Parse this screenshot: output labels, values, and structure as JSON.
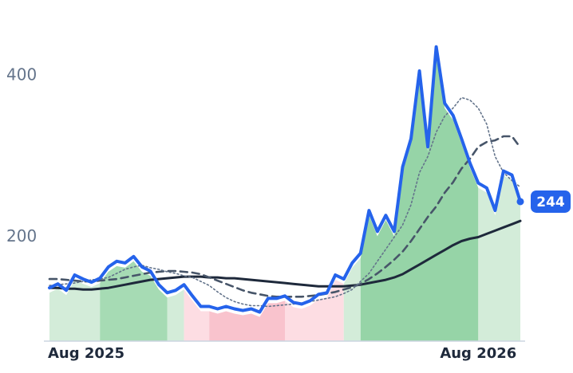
{
  "chart_data": {
    "type": "line",
    "categories": [
      "Aug 2025",
      null,
      null,
      null,
      null,
      null,
      null,
      null,
      null,
      null,
      null,
      null,
      null,
      null,
      null,
      null,
      null,
      null,
      null,
      null,
      null,
      null,
      null,
      null,
      null,
      null,
      null,
      null,
      null,
      null,
      null,
      null,
      null,
      null,
      null,
      null,
      null,
      null,
      null,
      null,
      null,
      null,
      null,
      null,
      null,
      null,
      null,
      null,
      null,
      null,
      null,
      "Aug 2026",
      null,
      null,
      null,
      null,
      null
    ],
    "series": [
      {
        "color": "#2563eb",
        "style": "solid",
        "width": 4,
        "values": [
          137,
          142,
          134,
          153,
          148,
          144,
          149,
          163,
          170,
          168,
          176,
          163,
          158,
          141,
          131,
          134,
          141,
          127,
          114,
          114,
          111,
          114,
          111,
          109,
          111,
          107,
          124,
          124,
          127,
          119,
          117,
          121,
          129,
          131,
          153,
          148,
          168,
          180,
          233,
          207,
          227,
          207,
          287,
          322,
          406,
          312,
          436,
          366,
          351,
          322,
          292,
          267,
          261,
          233,
          282,
          277,
          244
        ]
      },
      {
        "color": "#64748b",
        "style": "dotted",
        "width": 1.6,
        "values": [
          140,
          141,
          142,
          143,
          145,
          147,
          148,
          150,
          155,
          160,
          163,
          165,
          162,
          160,
          157,
          155,
          152,
          150,
          145,
          140,
          132,
          125,
          120,
          117,
          115,
          115,
          114,
          115,
          116,
          117,
          118,
          120,
          122,
          124,
          126,
          130,
          135,
          145,
          155,
          170,
          185,
          200,
          215,
          240,
          280,
          300,
          330,
          350,
          360,
          373,
          370,
          360,
          340,
          300,
          280,
          270,
          262
        ]
      },
      {
        "color": "#475569",
        "style": "dashed",
        "width": 2.6,
        "values": [
          148,
          148,
          147,
          146,
          145,
          145,
          146,
          147,
          148,
          150,
          152,
          154,
          156,
          157,
          158,
          158,
          157,
          156,
          154,
          150,
          146,
          142,
          138,
          134,
          131,
          129,
          127,
          126,
          126,
          126,
          126,
          127,
          128,
          130,
          132,
          135,
          138,
          142,
          148,
          155,
          163,
          172,
          182,
          195,
          210,
          225,
          238,
          255,
          268,
          285,
          297,
          312,
          318,
          320,
          325,
          325,
          311
        ]
      },
      {
        "color": "#1e293b",
        "style": "solid",
        "width": 3,
        "values": [
          137,
          137,
          136,
          136,
          135,
          135,
          136,
          137,
          139,
          141,
          143,
          145,
          147,
          148,
          149,
          150,
          151,
          151,
          151,
          150,
          150,
          149,
          149,
          148,
          147,
          146,
          145,
          144,
          143,
          142,
          141,
          140,
          139,
          139,
          139,
          139,
          140,
          141,
          143,
          145,
          147,
          150,
          154,
          160,
          166,
          172,
          178,
          184,
          190,
          195,
          198,
          200,
          204,
          208,
          212,
          216,
          220
        ]
      }
    ],
    "shading": [
      {
        "start": 0,
        "end": 6,
        "color": "#d3ecd9"
      },
      {
        "start": 6,
        "end": 14,
        "color": "#a6dbb4"
      },
      {
        "start": 14,
        "end": 16,
        "color": "#d3ecd9"
      },
      {
        "start": 16,
        "end": 19,
        "color": "#fddde3"
      },
      {
        "start": 19,
        "end": 28,
        "color": "#f9c3cd"
      },
      {
        "start": 28,
        "end": 35,
        "color": "#fddde3"
      },
      {
        "start": 35,
        "end": 37,
        "color": "#d3ecd9"
      },
      {
        "start": 37,
        "end": 51,
        "color": "#96d4a7"
      },
      {
        "start": 51,
        "end": 56,
        "color": "#d3ecd9"
      }
    ],
    "ylim": [
      71,
      494
    ],
    "yticks": [
      200,
      400
    ],
    "grid": false
  }
}
